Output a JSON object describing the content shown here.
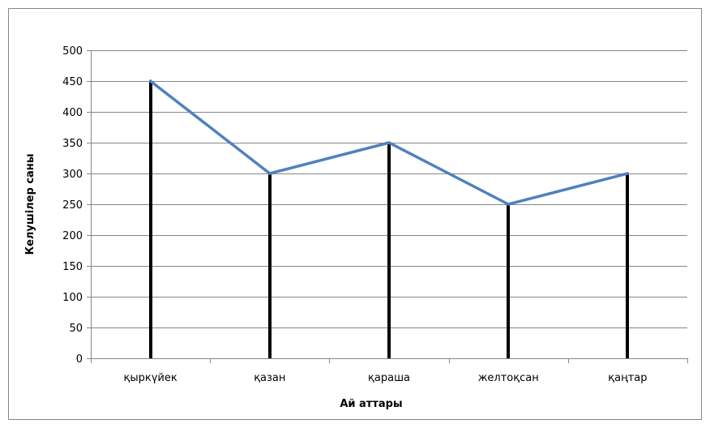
{
  "chart_data": {
    "type": "line",
    "title": "",
    "xlabel": "Ай аттары",
    "ylabel": "Келушілер саны",
    "categories": [
      "қыркүйек",
      "қазан",
      "қараша",
      "желтоқсан",
      "қаңтар"
    ],
    "series": [
      {
        "values": [
          450,
          300,
          350,
          250,
          300
        ],
        "color": "#4f81bd"
      }
    ],
    "drop_lines": true,
    "drop_line_color": "#000000",
    "ylim": [
      0,
      500
    ],
    "yticks": [
      0,
      50,
      100,
      150,
      200,
      250,
      300,
      350,
      400,
      450,
      500
    ],
    "grid": true,
    "legend": "none"
  }
}
